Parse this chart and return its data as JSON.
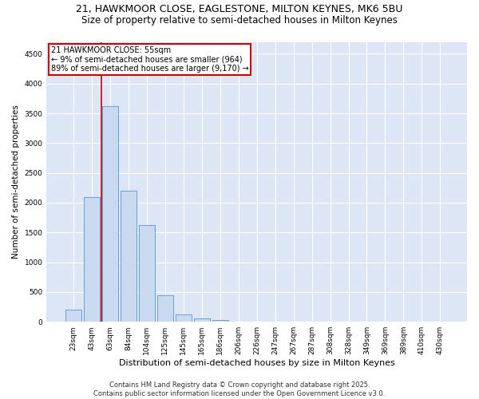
{
  "title1": "21, HAWKMOOR CLOSE, EAGLESTONE, MILTON KEYNES, MK6 5BU",
  "title2": "Size of property relative to semi-detached houses in Milton Keynes",
  "xlabel": "Distribution of semi-detached houses by size in Milton Keynes",
  "ylabel": "Number of semi-detached properties",
  "footnote1": "Contains HM Land Registry data © Crown copyright and database right 2025.",
  "footnote2": "Contains public sector information licensed under the Open Government Licence v3.0.",
  "annotation_title": "21 HAWKMOOR CLOSE: 55sqm",
  "annotation_line1": "← 9% of semi-detached houses are smaller (964)",
  "annotation_line2": "89% of semi-detached houses are larger (9,170) →",
  "bar_color": "#c8d9f0",
  "bar_edge_color": "#6a9fd8",
  "vline_color": "#cc0000",
  "background_color": "#dce6f5",
  "grid_color": "#ffffff",
  "categories": [
    "23sqm",
    "43sqm",
    "63sqm",
    "84sqm",
    "104sqm",
    "125sqm",
    "145sqm",
    "165sqm",
    "186sqm",
    "206sqm",
    "226sqm",
    "247sqm",
    "267sqm",
    "287sqm",
    "308sqm",
    "328sqm",
    "349sqm",
    "369sqm",
    "389sqm",
    "410sqm",
    "430sqm"
  ],
  "values": [
    200,
    2100,
    3620,
    2200,
    1620,
    450,
    120,
    55,
    30,
    0,
    0,
    0,
    0,
    0,
    0,
    0,
    0,
    0,
    0,
    0,
    0
  ],
  "ylim": [
    0,
    4700
  ],
  "yticks": [
    0,
    500,
    1000,
    1500,
    2000,
    2500,
    3000,
    3500,
    4000,
    4500
  ],
  "vline_x_idx": 1.5,
  "title1_fontsize": 9,
  "title2_fontsize": 8.5,
  "ylabel_fontsize": 7.5,
  "xlabel_fontsize": 8,
  "tick_fontsize": 6.5,
  "annotation_fontsize": 7,
  "footnote_fontsize": 6
}
